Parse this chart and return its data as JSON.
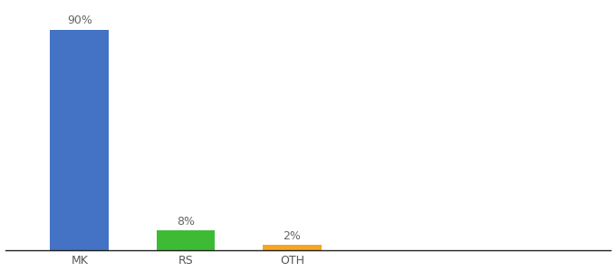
{
  "categories": [
    "MK",
    "RS",
    "OTH"
  ],
  "values": [
    90,
    8,
    2
  ],
  "bar_colors": [
    "#4472c4",
    "#3dbb35",
    "#f5a623"
  ],
  "labels": [
    "90%",
    "8%",
    "2%"
  ],
  "ylim": [
    0,
    100
  ],
  "background_color": "#ffffff",
  "label_fontsize": 9,
  "tick_fontsize": 9,
  "bar_width": 0.55,
  "x_positions": [
    1,
    2,
    3
  ],
  "xlim": [
    0.3,
    6.0
  ]
}
